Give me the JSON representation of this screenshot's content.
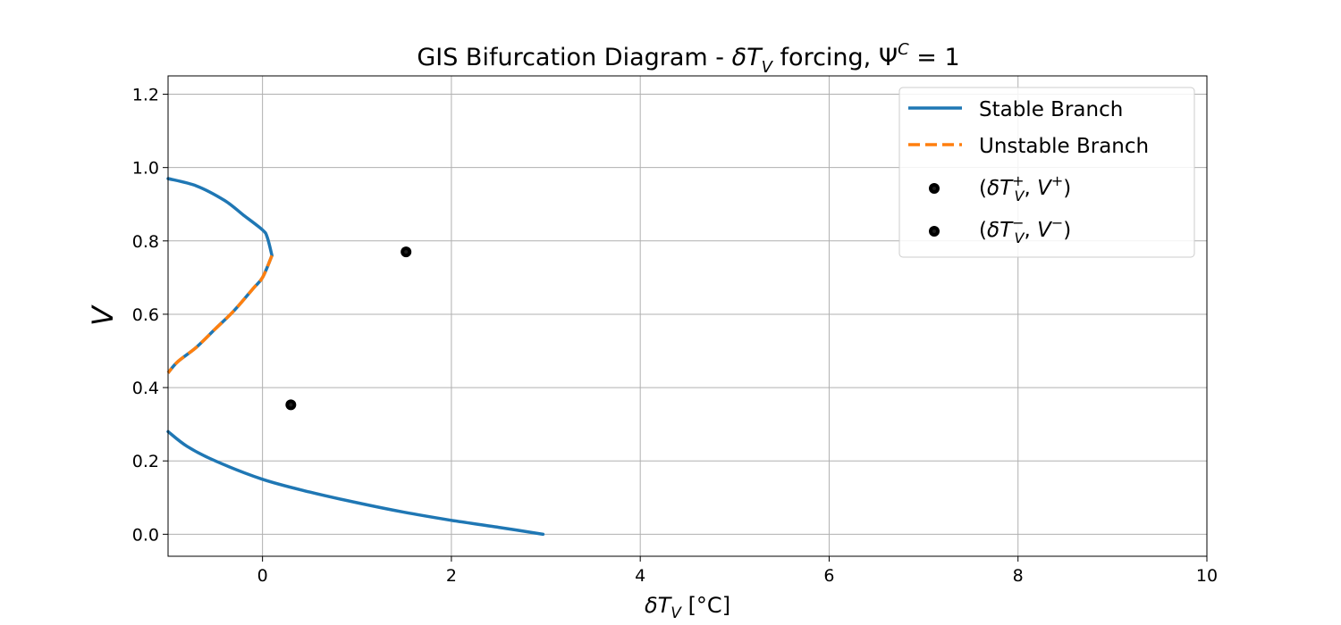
{
  "chart_data": {
    "type": "line",
    "title": "GIS Bifurcation Diagram - δT_V forcing, Ψ^C = 1",
    "title_parts": {
      "main": "GIS Bifurcation Diagram - ",
      "delta": "δ",
      "T": "T",
      "V_sub": "V",
      "forcing": " forcing, ",
      "Psi": "Ψ",
      "C_sup": "C",
      "eq": " = 1"
    },
    "xlabel": "δT_V [°C]",
    "xlabel_parts": {
      "delta": "δ",
      "T": "T",
      "V_sub": "V",
      "unit": " [°C]"
    },
    "ylabel": "V",
    "xlim": [
      -1.0,
      10.0
    ],
    "ylim": [
      -0.06,
      1.25
    ],
    "xticks": [
      0,
      2,
      4,
      6,
      8,
      10
    ],
    "yticks": [
      0.0,
      0.2,
      0.4,
      0.6,
      0.8,
      1.0,
      1.2
    ],
    "xtick_labels": [
      "0",
      "2",
      "4",
      "6",
      "8",
      "10"
    ],
    "ytick_labels": [
      "0.0",
      "0.2",
      "0.4",
      "0.6",
      "0.8",
      "1.0",
      "1.2"
    ],
    "grid": true,
    "legend_position": "top-right",
    "series": [
      {
        "name": "Stable Branch",
        "style": "solid",
        "color": "#1f77b4",
        "upper_x": [
          -1.0,
          -0.7,
          -0.4,
          -0.2,
          0.0,
          0.05,
          0.1
        ],
        "upper_y": [
          0.97,
          0.95,
          0.91,
          0.87,
          0.83,
          0.81,
          0.76
        ],
        "lower_x": [
          -1.0,
          -0.8,
          -0.5,
          0.0,
          0.5,
          1.0,
          1.5,
          2.0,
          2.5,
          2.97
        ],
        "lower_y": [
          0.28,
          0.24,
          0.2,
          0.15,
          0.115,
          0.086,
          0.06,
          0.038,
          0.019,
          0.0
        ]
      },
      {
        "name": "Unstable Branch",
        "style": "dashed",
        "color": "#ff7f0e",
        "x": [
          0.1,
          0.0,
          -0.1,
          -0.3,
          -0.5,
          -0.7,
          -0.9,
          -1.0
        ],
        "y": [
          0.76,
          0.7,
          0.67,
          0.61,
          0.56,
          0.51,
          0.47,
          0.44
        ]
      }
    ],
    "points": [
      {
        "name": "(δT_V^+, V^+)",
        "x": 1.52,
        "y": 0.77
      },
      {
        "name": "(δT_V^-, V^-)",
        "x": 0.3,
        "y": 0.353
      }
    ],
    "legend_labels": {
      "stable": "Stable Branch",
      "unstable": "Unstable Branch",
      "plus": {
        "open": "(",
        "delta": "δ",
        "T": "T",
        "sup": "+",
        "sub": "V",
        "comma": ", ",
        "V": "V",
        "sup2": "+",
        "close": ")"
      },
      "minus": {
        "open": "(",
        "delta": "δ",
        "T": "T",
        "sup": "−",
        "sub": "V",
        "comma": ", ",
        "V": "V",
        "sup2": "−",
        "close": ")"
      }
    },
    "colors": {
      "stable": "#1f77b4",
      "unstable": "#ff7f0e",
      "points": "#000000",
      "grid": "#b0b0b0"
    }
  }
}
